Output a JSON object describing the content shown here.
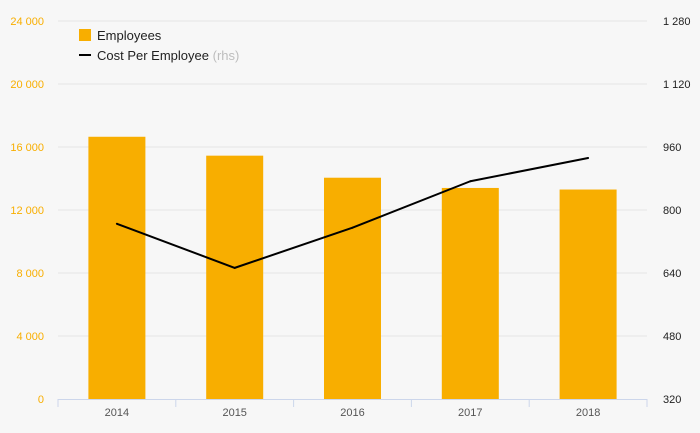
{
  "chart_data": {
    "type": "bar",
    "categories": [
      "2014",
      "2015",
      "2016",
      "2017",
      "2018"
    ],
    "series": [
      {
        "name": "Employees",
        "type": "bar",
        "axis": "left",
        "color": "#f8ae00",
        "values": [
          16650,
          15450,
          14050,
          13400,
          13300
        ]
      },
      {
        "name": "Cost Per Employee",
        "type": "line",
        "axis": "right",
        "color": "#000000",
        "values": [
          765,
          653,
          755,
          873,
          932
        ]
      }
    ],
    "y_left": {
      "range": [
        0,
        24000
      ],
      "ticks": [
        0,
        4000,
        8000,
        12000,
        16000,
        20000,
        24000
      ],
      "tick_labels": [
        "0",
        "4 000",
        "8 000",
        "12 000",
        "16 000",
        "20 000",
        "24 000"
      ],
      "color": "#f8ae00"
    },
    "y_right": {
      "range": [
        320,
        1280
      ],
      "ticks": [
        320,
        480,
        640,
        800,
        960,
        1120,
        1280
      ],
      "tick_labels": [
        "320",
        "480",
        "640",
        "800",
        "960",
        "1 120",
        "1 280"
      ]
    },
    "legend": {
      "position": "top-left",
      "items": [
        {
          "label": "Employees",
          "hint": ""
        },
        {
          "label": "Cost Per Employee",
          "hint": "(rhs)"
        }
      ]
    },
    "gridlines": true
  }
}
